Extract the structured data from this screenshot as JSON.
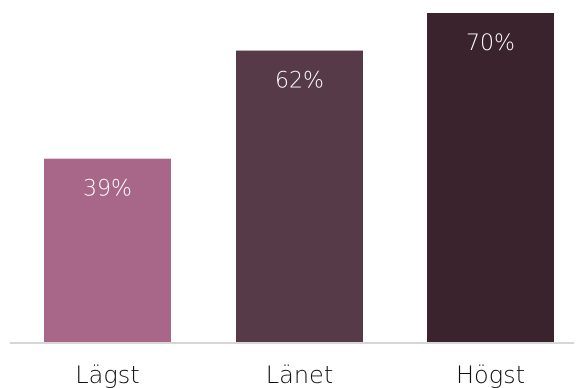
{
  "chart_data": {
    "type": "bar",
    "categories": [
      "Lägst",
      "Länet",
      "Högst"
    ],
    "values": [
      39,
      62,
      70
    ],
    "value_labels": [
      "39%",
      "62%",
      "70%"
    ],
    "unit": "%",
    "ylim": [
      0,
      70
    ],
    "grid": false,
    "legend": "none",
    "colors": [
      "#a86788",
      "#573a48",
      "#3a232d"
    ],
    "title": "",
    "xlabel": "",
    "ylabel": ""
  }
}
